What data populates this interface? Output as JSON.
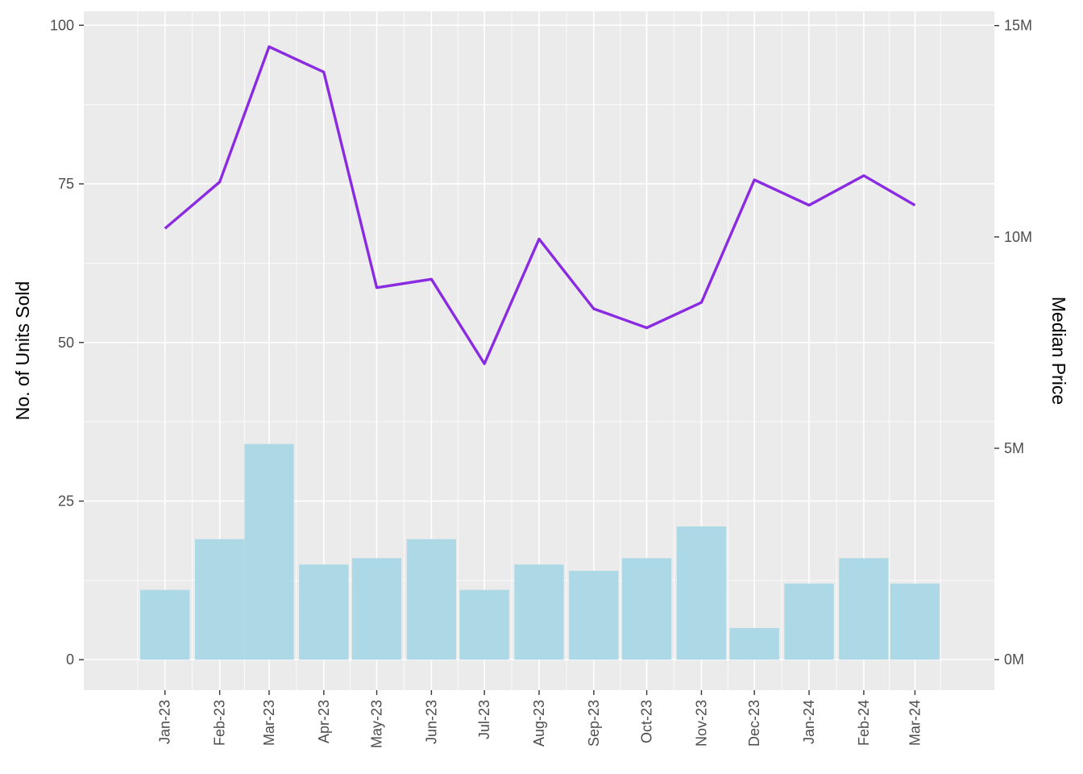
{
  "chart_data": {
    "type": "bar+line",
    "categories": [
      "Jan-23",
      "Feb-23",
      "Mar-23",
      "Apr-23",
      "May-23",
      "Jun-23",
      "Jul-23",
      "Aug-23",
      "Sep-23",
      "Oct-23",
      "Nov-23",
      "Dec-23",
      "Jan-24",
      "Feb-24",
      "Mar-24"
    ],
    "x_dates": [
      "2023-01-01",
      "2023-02-01",
      "2023-03-01",
      "2023-04-01",
      "2023-05-01",
      "2023-06-01",
      "2023-07-01",
      "2023-08-01",
      "2023-09-01",
      "2023-10-01",
      "2023-11-01",
      "2023-12-01",
      "2024-01-01",
      "2024-02-01",
      "2024-03-01"
    ],
    "xlim": [
      "2022-11-16",
      "2024-04-15"
    ],
    "series": [
      {
        "kind": "bar",
        "axis": "left",
        "color": "#add8e6",
        "values": [
          11,
          19,
          34,
          15,
          16,
          19,
          11,
          15,
          14,
          16,
          21,
          5,
          12,
          16,
          12
        ]
      },
      {
        "kind": "line",
        "axis": "right",
        "color": "#8a2be2",
        "values": [
          10200000,
          11300000,
          14500000,
          13900000,
          8800000,
          9000000,
          7000000,
          9950000,
          8300000,
          7850000,
          8450000,
          11350000,
          10750000,
          11450000,
          10750000
        ]
      }
    ],
    "ylabel": "No. of Units Sold",
    "ylabel_right": "Median Price",
    "ylim": [
      -4.8,
      102.2
    ],
    "ylim_right": [
      -722000,
      15338000
    ],
    "yticks": [
      0,
      25,
      50,
      75,
      100
    ],
    "yticks_right": [
      {
        "value": 0,
        "label": "0M"
      },
      {
        "value": 5000000,
        "label": "5M"
      },
      {
        "value": 10000000,
        "label": "10M"
      },
      {
        "value": 15000000,
        "label": "15M"
      }
    ],
    "grid": true,
    "panel_background": "#ebebeb",
    "legend": "none"
  }
}
